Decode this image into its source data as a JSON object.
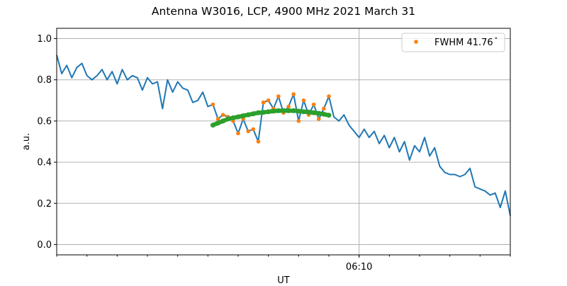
{
  "chart_data": {
    "type": "line",
    "title": "Antenna W3016, LCP, 4900 MHz 2021 March 31",
    "xlabel": "UT",
    "ylabel": "a.u.",
    "xlim": [
      "06:00:00",
      "06:15:00"
    ],
    "ylim": [
      -0.05,
      1.05
    ],
    "x_major_ticks": [
      {
        "time": "06:10:00",
        "label": "06:10"
      }
    ],
    "x_minor_tick_interval": "1 min",
    "yticks": [
      0.0,
      0.2,
      0.4,
      0.6,
      0.8,
      1.0
    ],
    "ytick_labels": [
      "0.0",
      "0.2",
      "0.4",
      "0.6",
      "0.8",
      "1.0"
    ],
    "grid": true,
    "legend": {
      "placement": "top-right",
      "entries": [
        "FWHM 41.76$^\\circ$"
      ],
      "label_text": "FWHM 41.76",
      "label_suffix": "°"
    },
    "series": [
      {
        "style": "line",
        "color": "#1f77b4",
        "x": [
          "06:00:00",
          "06:00:10",
          "06:00:20",
          "06:00:30",
          "06:00:40",
          "06:00:50",
          "06:01:00",
          "06:01:10",
          "06:01:20",
          "06:01:30",
          "06:01:40",
          "06:01:50",
          "06:02:00",
          "06:02:10",
          "06:02:20",
          "06:02:30",
          "06:02:40",
          "06:02:50",
          "06:03:00",
          "06:03:10",
          "06:03:20",
          "06:03:30",
          "06:03:40",
          "06:03:50",
          "06:04:00",
          "06:04:10",
          "06:04:20",
          "06:04:30",
          "06:04:40",
          "06:04:50",
          "06:05:00",
          "06:05:10",
          "06:05:20",
          "06:05:30",
          "06:05:40",
          "06:05:50",
          "06:06:00",
          "06:06:10",
          "06:06:20",
          "06:06:30",
          "06:06:40",
          "06:06:50",
          "06:07:00",
          "06:07:10",
          "06:07:20",
          "06:07:30",
          "06:07:40",
          "06:07:50",
          "06:08:00",
          "06:08:10",
          "06:08:20",
          "06:08:30",
          "06:08:40",
          "06:08:50",
          "06:09:00",
          "06:09:10",
          "06:09:20",
          "06:09:30",
          "06:09:40",
          "06:09:50",
          "06:10:00",
          "06:10:10",
          "06:10:20",
          "06:10:30",
          "06:10:40",
          "06:10:50",
          "06:11:00",
          "06:11:10",
          "06:11:20",
          "06:11:30",
          "06:11:40",
          "06:11:50",
          "06:12:00",
          "06:12:10",
          "06:12:20",
          "06:12:30",
          "06:12:40",
          "06:12:50",
          "06:13:00",
          "06:13:10",
          "06:13:20",
          "06:13:30",
          "06:13:40",
          "06:13:50",
          "06:14:00",
          "06:14:10",
          "06:14:20",
          "06:14:30",
          "06:14:40",
          "06:14:50",
          "06:15:00"
        ],
        "y": [
          0.92,
          0.83,
          0.87,
          0.81,
          0.86,
          0.88,
          0.82,
          0.8,
          0.82,
          0.85,
          0.8,
          0.84,
          0.78,
          0.85,
          0.8,
          0.82,
          0.81,
          0.75,
          0.81,
          0.78,
          0.79,
          0.66,
          0.8,
          0.74,
          0.79,
          0.76,
          0.75,
          0.69,
          0.7,
          0.74,
          0.67,
          0.68,
          0.61,
          0.63,
          0.62,
          0.6,
          0.54,
          0.61,
          0.55,
          0.56,
          0.5,
          0.69,
          0.7,
          0.66,
          0.72,
          0.64,
          0.67,
          0.73,
          0.6,
          0.7,
          0.63,
          0.68,
          0.61,
          0.66,
          0.72,
          0.62,
          0.6,
          0.63,
          0.58,
          0.55,
          0.52,
          0.56,
          0.52,
          0.55,
          0.49,
          0.53,
          0.47,
          0.52,
          0.45,
          0.5,
          0.41,
          0.48,
          0.45,
          0.52,
          0.43,
          0.47,
          0.38,
          0.35,
          0.34,
          0.34,
          0.33,
          0.34,
          0.37,
          0.28,
          0.27,
          0.26,
          0.24,
          0.25,
          0.18,
          0.26,
          0.14
        ]
      },
      {
        "style": "points",
        "color": "#ff7f0e",
        "name": "FWHM 41.76°",
        "x": [
          "06:05:10",
          "06:05:20",
          "06:05:30",
          "06:05:40",
          "06:05:50",
          "06:06:00",
          "06:06:10",
          "06:06:20",
          "06:06:30",
          "06:06:40",
          "06:06:50",
          "06:07:00",
          "06:07:10",
          "06:07:20",
          "06:07:30",
          "06:07:40",
          "06:07:50",
          "06:08:00",
          "06:08:10",
          "06:08:20",
          "06:08:30",
          "06:08:40",
          "06:08:50",
          "06:09:00"
        ],
        "y": [
          0.68,
          0.61,
          0.63,
          0.62,
          0.6,
          0.54,
          0.61,
          0.55,
          0.56,
          0.5,
          0.69,
          0.7,
          0.66,
          0.72,
          0.64,
          0.67,
          0.73,
          0.6,
          0.7,
          0.63,
          0.68,
          0.61,
          0.66,
          0.72
        ]
      },
      {
        "style": "thick-points",
        "color": "#2ca02c",
        "x": [
          "06:05:10",
          "06:05:20",
          "06:05:30",
          "06:05:40",
          "06:05:50",
          "06:06:00",
          "06:06:10",
          "06:06:20",
          "06:06:30",
          "06:06:40",
          "06:06:50",
          "06:07:00",
          "06:07:10",
          "06:07:20",
          "06:07:30",
          "06:07:40",
          "06:07:50",
          "06:08:00",
          "06:08:10",
          "06:08:20",
          "06:08:30",
          "06:08:40",
          "06:08:50",
          "06:09:00"
        ],
        "y": [
          0.58,
          0.59,
          0.6,
          0.61,
          0.615,
          0.62,
          0.625,
          0.63,
          0.635,
          0.64,
          0.642,
          0.645,
          0.648,
          0.65,
          0.65,
          0.65,
          0.65,
          0.648,
          0.645,
          0.643,
          0.64,
          0.637,
          0.633,
          0.628
        ]
      }
    ]
  }
}
